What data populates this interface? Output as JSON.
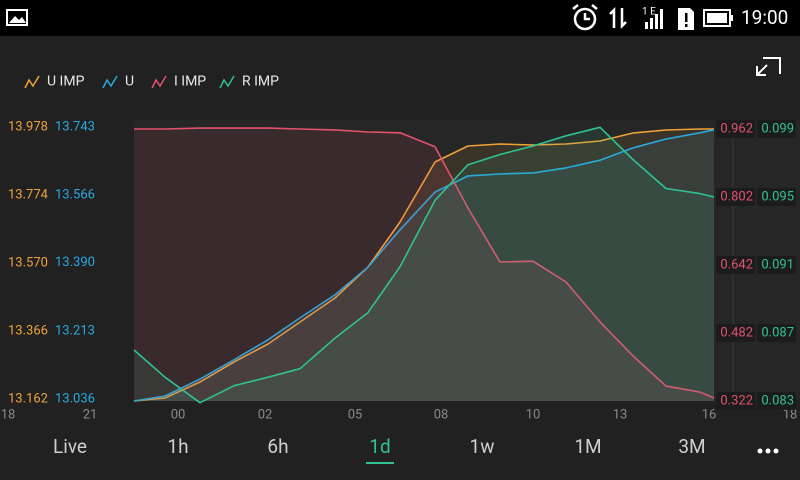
{
  "status_bar": {
    "time": "19:00"
  },
  "chart_data": {
    "type": "line",
    "x": [
      126,
      157,
      192,
      226,
      260,
      292,
      327,
      360,
      392,
      427,
      460,
      492,
      525,
      558,
      592,
      625,
      658,
      692,
      706
    ],
    "xlim": [
      0,
      782
    ],
    "xticks": [
      {
        "value": 0,
        "label": "18"
      },
      {
        "value": 82,
        "label": "21"
      },
      {
        "value": 170,
        "label": "00"
      },
      {
        "value": 257,
        "label": "02"
      },
      {
        "value": 347,
        "label": "05"
      },
      {
        "value": 433,
        "label": "08"
      },
      {
        "value": 525,
        "label": "10"
      },
      {
        "value": 612,
        "label": "13"
      },
      {
        "value": 701,
        "label": "16"
      },
      {
        "value": 782,
        "label": "18"
      }
    ],
    "series": [
      {
        "name": "U IMP",
        "color": "#f0a23a",
        "axis": "left",
        "ylim": [
          13.162,
          13.978
        ],
        "yticks": [
          13.978,
          13.774,
          {
            "value": 13.57,
            "label": "13.570"
          },
          13.366,
          13.162
        ],
        "values": [
          13.162,
          13.171,
          13.219,
          13.279,
          13.333,
          13.399,
          13.471,
          13.564,
          13.699,
          13.879,
          13.927,
          13.933,
          13.93,
          13.933,
          13.942,
          13.966,
          13.975,
          13.978,
          13.978
        ]
      },
      {
        "name": "U",
        "color": "#2aa9e0",
        "axis": "left",
        "ylim": [
          13.036,
          13.743
        ],
        "yticks": [
          13.743,
          13.566,
          {
            "value": 13.39,
            "label": "13.390"
          },
          13.213,
          13.036
        ],
        "values": [
          13.036,
          13.049,
          13.093,
          13.143,
          13.195,
          13.252,
          13.312,
          13.384,
          13.481,
          13.579,
          13.621,
          13.626,
          13.629,
          13.642,
          13.662,
          13.694,
          13.717,
          13.733,
          13.741
        ]
      },
      {
        "name": "I IMP",
        "color": "#e2536c",
        "axis": "right",
        "ylim": [
          0.322,
          0.962
        ],
        "yticks": [
          0.962,
          0.802,
          0.642,
          0.482,
          0.322
        ],
        "values": [
          0.962,
          0.962,
          0.964,
          0.964,
          0.964,
          0.962,
          0.96,
          0.955,
          0.953,
          0.92,
          0.776,
          0.649,
          0.651,
          0.602,
          0.508,
          0.428,
          0.357,
          0.343,
          0.329
        ]
      },
      {
        "name": "R IMP",
        "color": "#2fc391",
        "axis": "right",
        "ylim": [
          0.083,
          0.099
        ],
        "yticks": [
          0.099,
          0.095,
          0.091,
          0.087,
          0.083
        ],
        "values": [
          0.086,
          0.0844,
          0.0829,
          0.0839,
          0.0844,
          0.0849,
          0.0867,
          0.0882,
          0.0909,
          0.0948,
          0.0969,
          0.0975,
          0.098,
          0.0986,
          0.0991,
          0.0972,
          0.0955,
          0.0952,
          0.095
        ]
      }
    ]
  },
  "tabs": [
    "Live",
    "1h",
    "6h",
    "1d",
    "1w",
    "1M",
    "3M"
  ],
  "selected_tab": 3
}
